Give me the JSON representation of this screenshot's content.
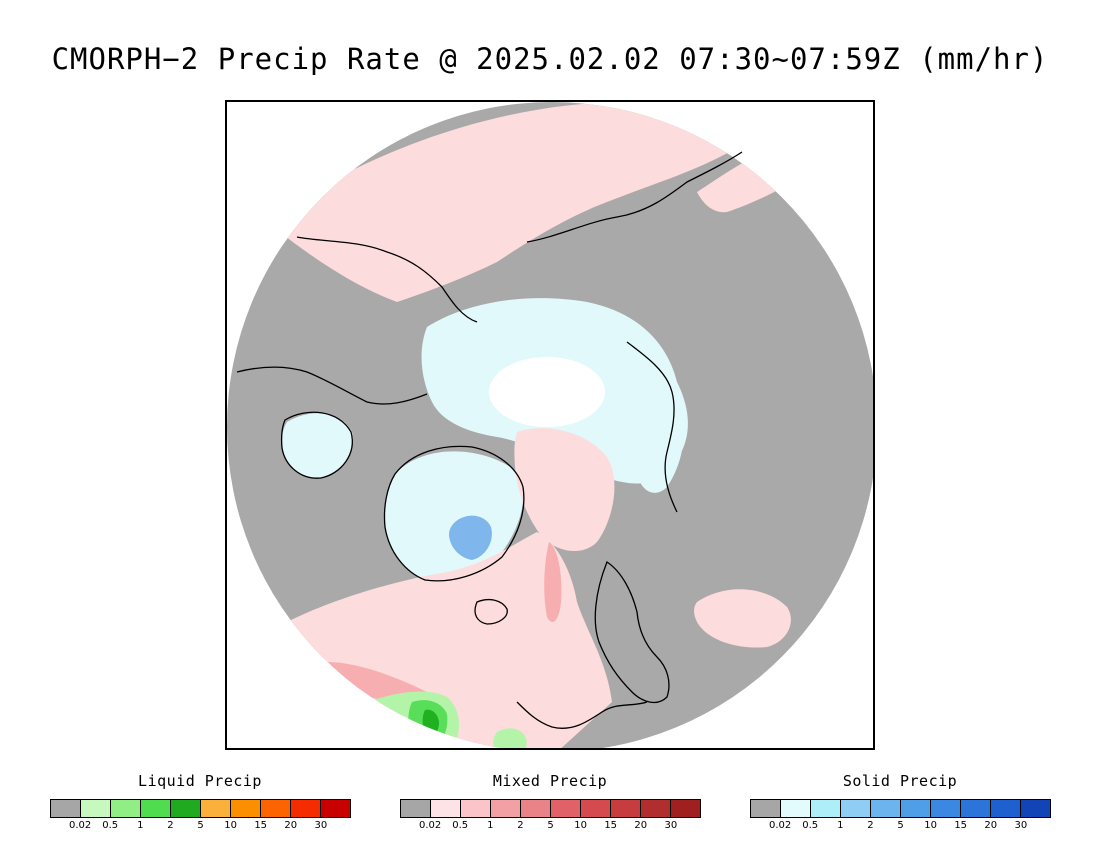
{
  "title": "CMORPH−2 Precip Rate @ 2025.02.02 07:30~07:59Z (mm/hr)",
  "map": {
    "colors": {
      "no_precip": "#a9a9a9",
      "background": "#ffffff",
      "mixed_light": "#fcdcdc",
      "mixed_med": "#f7aeb0",
      "solid_light": "#e2f9fc",
      "solid_med": "#7fb6ec",
      "liquid_light": "#b4f4a8",
      "liquid_med": "#59de59",
      "liquid_dark": "#20b020",
      "coastline": "#000000"
    }
  },
  "legends": [
    {
      "title": "Liquid Precip",
      "colors": [
        "#a6a6a6",
        "#c7f8bd",
        "#90ee85",
        "#4fdc4f",
        "#1faa1f",
        "#fbb03b",
        "#fb8f00",
        "#fb6400",
        "#f52c00",
        "#c80000"
      ],
      "ticks": [
        "0.02",
        "0.5",
        "1",
        "2",
        "5",
        "10",
        "15",
        "20",
        "30"
      ]
    },
    {
      "title": "Mixed Precip",
      "colors": [
        "#a6a6a6",
        "#fde3e5",
        "#fbc4c8",
        "#f3a0a5",
        "#ea8388",
        "#e06168",
        "#d44a4f",
        "#c63c3f",
        "#b22d2e",
        "#a02020"
      ],
      "ticks": [
        "0.02",
        "0.5",
        "1",
        "2",
        "5",
        "10",
        "15",
        "20",
        "30"
      ]
    },
    {
      "title": "Solid Precip",
      "colors": [
        "#a6a6a6",
        "#e2fcfd",
        "#aeeef8",
        "#8fcdf4",
        "#6cb4ee",
        "#4f9ee8",
        "#3a88e2",
        "#2a74da",
        "#1e60d0",
        "#1244b8"
      ],
      "ticks": [
        "0.02",
        "0.5",
        "1",
        "2",
        "5",
        "10",
        "15",
        "20",
        "30"
      ]
    }
  ]
}
